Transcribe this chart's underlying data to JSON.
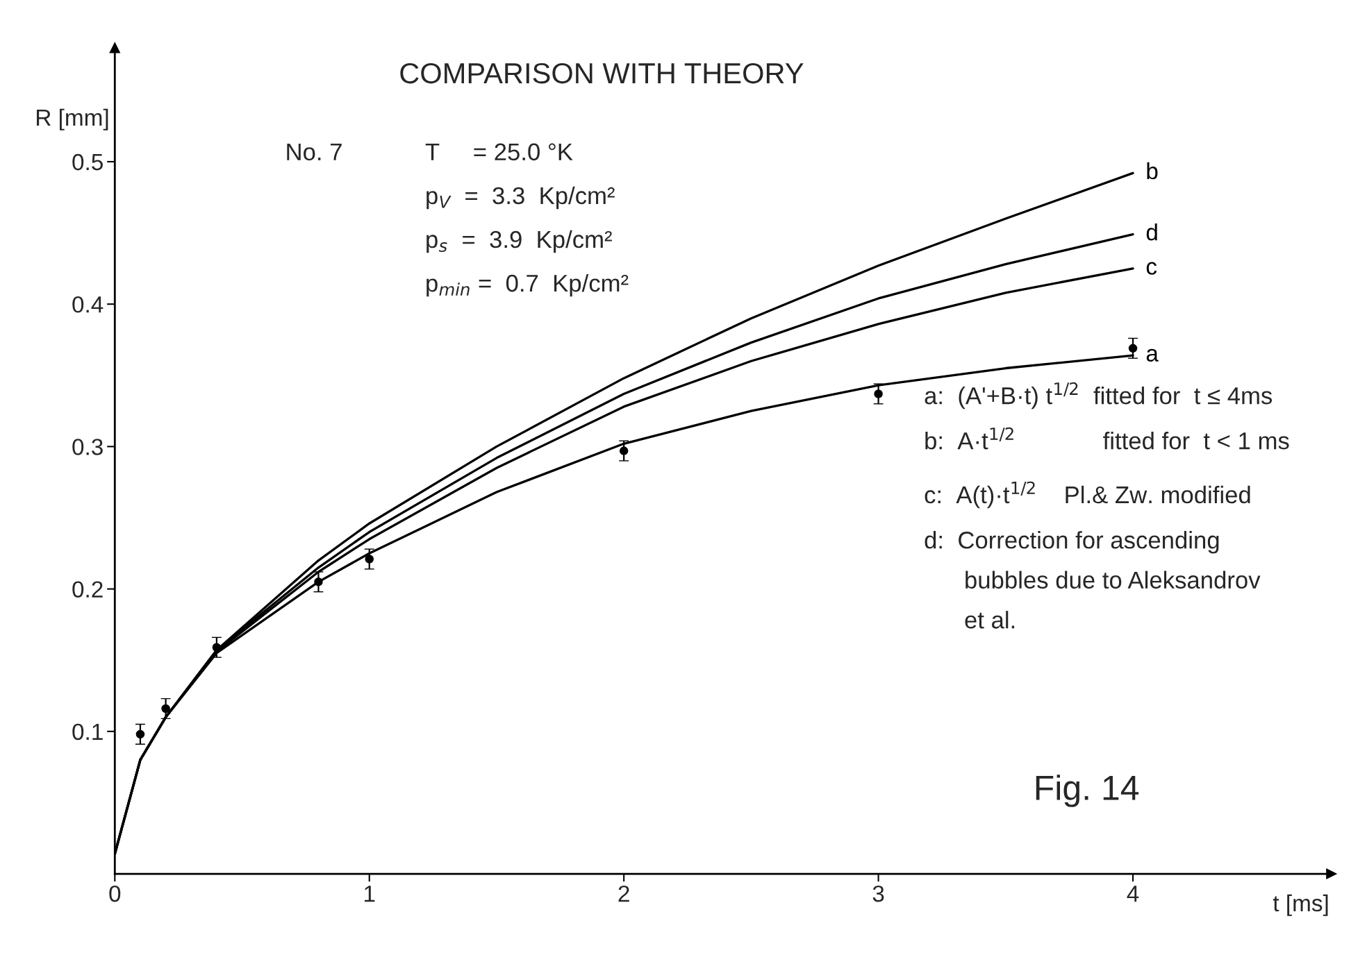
{
  "chart_data": {
    "type": "line",
    "title": "COMPARISON WITH THEORY",
    "xlabel": "t [ms]",
    "ylabel": "R [mm]",
    "xlim": [
      0,
      4.78
    ],
    "ylim": [
      0,
      0.58
    ],
    "xticks": [
      0,
      1,
      2,
      3,
      4
    ],
    "yticks": [
      0.1,
      0.2,
      0.3,
      0.4,
      0.5
    ],
    "grid": false,
    "series": [
      {
        "name": "b",
        "color": "#000000",
        "x": [
          0,
          0.1,
          0.2,
          0.4,
          0.8,
          1,
          1.5,
          2,
          2.5,
          3,
          3.5,
          4
        ],
        "values": [
          0.014,
          0.08,
          0.11,
          0.157,
          0.22,
          0.246,
          0.3,
          0.348,
          0.39,
          0.427,
          0.46,
          0.492
        ]
      },
      {
        "name": "d",
        "color": "#000000",
        "x": [
          0,
          0.1,
          0.2,
          0.4,
          0.8,
          1,
          1.5,
          2,
          2.5,
          3,
          3.5,
          4
        ],
        "values": [
          0.014,
          0.08,
          0.11,
          0.157,
          0.215,
          0.24,
          0.292,
          0.337,
          0.373,
          0.404,
          0.428,
          0.449
        ]
      },
      {
        "name": "c",
        "color": "#000000",
        "x": [
          0,
          0.1,
          0.2,
          0.4,
          0.8,
          1,
          1.5,
          2,
          2.5,
          3,
          3.5,
          4
        ],
        "values": [
          0.014,
          0.08,
          0.11,
          0.156,
          0.212,
          0.235,
          0.285,
          0.328,
          0.36,
          0.386,
          0.408,
          0.425
        ]
      },
      {
        "name": "a",
        "color": "#000000",
        "x": [
          0,
          0.1,
          0.2,
          0.4,
          0.8,
          1,
          1.5,
          2,
          2.5,
          3,
          3.5,
          4
        ],
        "values": [
          0.014,
          0.08,
          0.11,
          0.155,
          0.205,
          0.225,
          0.268,
          0.302,
          0.325,
          0.343,
          0.355,
          0.364
        ]
      },
      {
        "type": "scatter",
        "color": "#000000",
        "marker": "circle",
        "x": [
          0.1,
          0.2,
          0.4,
          0.8,
          1,
          2,
          3,
          4
        ],
        "values": [
          0.098,
          0.116,
          0.159,
          0.205,
          0.221,
          0.297,
          0.337,
          0.369
        ],
        "errors": [
          0.007,
          0.007,
          0.007,
          0.007,
          0.007,
          0.007,
          0.007,
          0.007
        ]
      }
    ],
    "annotations": [
      "No. 7",
      "T     = 25.0 °K",
      "p$_{V}$  =  3.3  Kp/cm²",
      "p$_{s}$  =  3.9  Kp/cm²",
      "p$_{min}$ =  0.7  Kp/cm²",
      "a:  (A'+B·t) t$^{1/2}$  fitted for  t ≤ 4ms",
      "b:  A·t$^{1/2}$             fitted for  t < 1 ms",
      "c:  A(t)·t$^{1/2}$    Pl.& Zw. modified",
      "d:  Correction for ascending\n      bubbles due to Aleksandrov\n      et al.",
      "Fig. 14"
    ]
  }
}
